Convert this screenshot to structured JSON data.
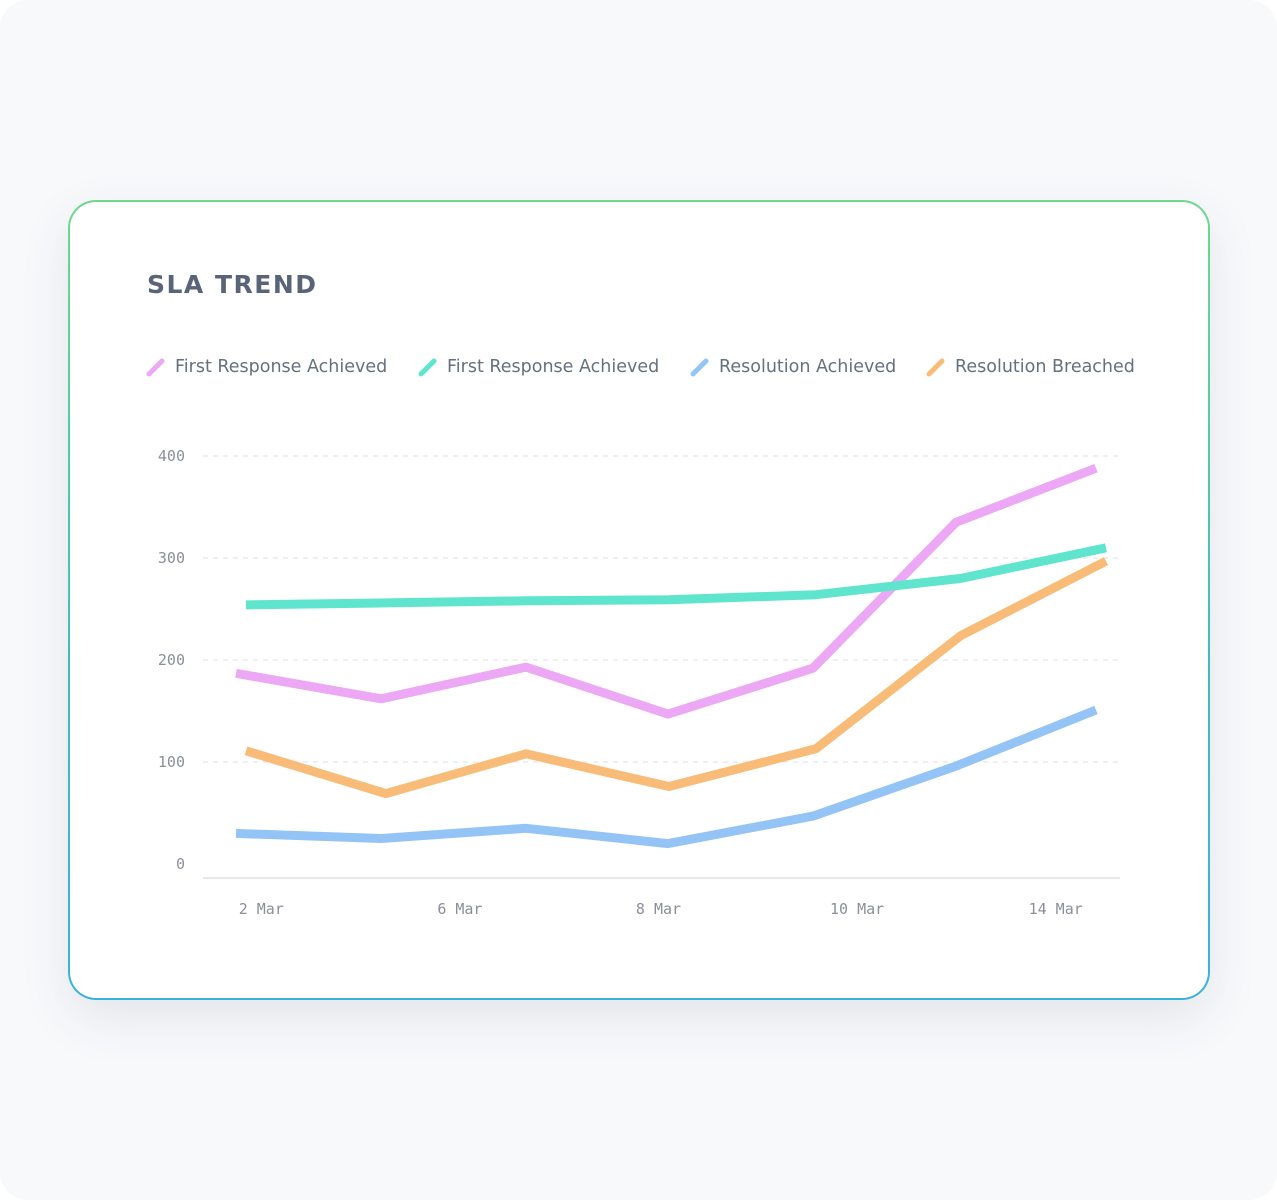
{
  "title": "SLA TREND",
  "colors": {
    "first_response_pink": "#eca8f5",
    "first_response_teal": "#5fe5cd",
    "resolution_achieved": "#94c4f6",
    "resolution_breached": "#f8bc78",
    "grid": "#e3e5ea",
    "axis": "#dfe2e7",
    "tick_text": "#8a8f98"
  },
  "chart_data": {
    "type": "line",
    "title": "SLA TREND",
    "x": [
      "",
      "2 Mar",
      "",
      "6 Mar",
      "",
      "8 Mar",
      "",
      "10 Mar",
      "",
      "14 Mar",
      ""
    ],
    "x_tick_labels": [
      "2 Mar",
      "6 Mar",
      "8 Mar",
      "10 Mar",
      "14 Mar"
    ],
    "y_tick_labels": [
      "0",
      "100",
      "200",
      "300",
      "400"
    ],
    "ylim": [
      0,
      420
    ],
    "grid": true,
    "legend": "top",
    "series": [
      {
        "name": "First Response Achieved",
        "color": "#eca8f5",
        "points": [
          [
            0.0,
            187
          ],
          [
            1.45,
            162
          ],
          [
            2.9,
            193
          ],
          [
            4.32,
            147
          ],
          [
            5.77,
            192
          ],
          [
            7.2,
            335
          ],
          [
            8.6,
            388
          ]
        ]
      },
      {
        "name": "First Response Achieved",
        "color": "#5fe5cd",
        "points": [
          [
            0.1,
            254
          ],
          [
            1.5,
            256
          ],
          [
            2.9,
            258
          ],
          [
            4.33,
            259
          ],
          [
            5.8,
            264
          ],
          [
            7.25,
            280
          ],
          [
            8.7,
            310
          ]
        ]
      },
      {
        "name": "Resolution Achieved",
        "color": "#94c4f6",
        "points": [
          [
            0.0,
            30
          ],
          [
            1.45,
            25
          ],
          [
            2.9,
            35
          ],
          [
            4.32,
            20
          ],
          [
            5.77,
            47
          ],
          [
            7.2,
            96
          ],
          [
            8.6,
            151
          ]
        ]
      },
      {
        "name": "Resolution Breached",
        "color": "#f8bc78",
        "points": [
          [
            0.1,
            111
          ],
          [
            1.5,
            69
          ],
          [
            2.9,
            108
          ],
          [
            4.33,
            76
          ],
          [
            5.8,
            113
          ],
          [
            7.25,
            224
          ],
          [
            8.7,
            297
          ]
        ]
      }
    ]
  }
}
